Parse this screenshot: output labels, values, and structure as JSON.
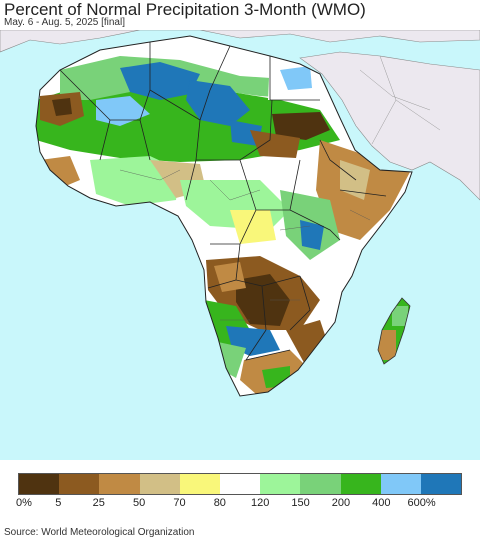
{
  "header": {
    "title": "Percent of Normal Precipitation 3-Month (WMO)",
    "subtitle": "May. 6 - Aug. 5, 2025 [final]"
  },
  "map": {
    "region": "Africa",
    "ocean_color": "#c9f7fb",
    "outside_land_color": "#ece8ef",
    "no_data_color": "#ffffff"
  },
  "legend": {
    "colors": [
      "#4f3310",
      "#8c5a20",
      "#c08a44",
      "#d2bf86",
      "#f9f77a",
      "#ffffff",
      "#9df59a",
      "#79d279",
      "#37b51d",
      "#80c8f8",
      "#1f77b8"
    ],
    "labels": [
      "0%",
      "5",
      "25",
      "50",
      "70",
      "80",
      "120",
      "150",
      "200",
      "400",
      "600%"
    ]
  },
  "footer": {
    "source": "Source: World Meteorological Organization"
  }
}
